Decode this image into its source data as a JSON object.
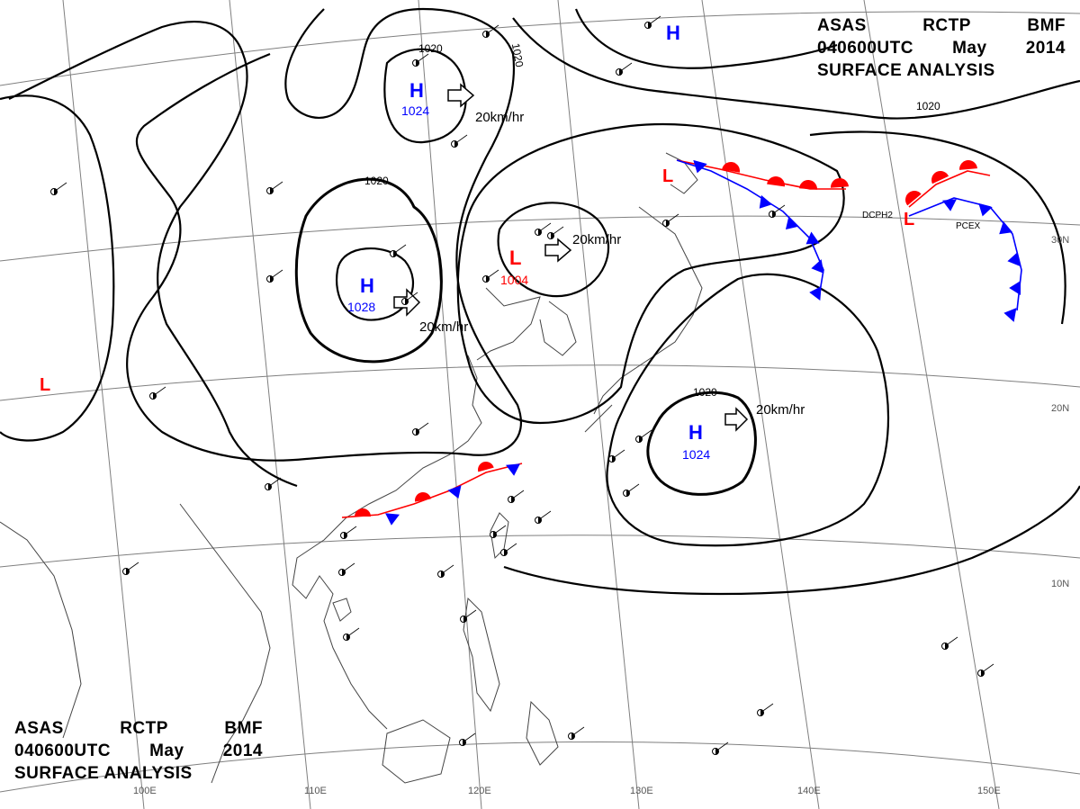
{
  "title": {
    "line1": [
      "ASAS",
      "RCTP",
      "BMF"
    ],
    "line2": [
      "040600UTC",
      "May",
      "2014"
    ],
    "line3": "SURFACE ANALYSIS"
  },
  "colors": {
    "high": "#0000ff",
    "low": "#ff0000",
    "cold_front": "#0000ff",
    "warm_front": "#ff0000",
    "grid": "#7f7f7f",
    "coast": "#444444"
  },
  "lat_labels": [
    "30N",
    "20N",
    "10N"
  ],
  "lon_labels": [
    "100E",
    "110E",
    "120E",
    "130E",
    "140E",
    "150E"
  ],
  "isobar_labels": [
    "1020",
    "1020",
    "1020",
    "1020",
    "1020"
  ],
  "pressure_centers": [
    {
      "type": "H",
      "value": "1024"
    },
    {
      "type": "H",
      "value": "1028"
    },
    {
      "type": "L",
      "value": "1004"
    },
    {
      "type": "H",
      "value": "1024"
    },
    {
      "type": "H",
      "value": ""
    },
    {
      "type": "L",
      "value": ""
    },
    {
      "type": "L",
      "value": ""
    },
    {
      "type": "L",
      "value": ""
    }
  ],
  "motion_labels": [
    "20km/hr",
    "20km/hr",
    "20km/hr",
    "20km/hr"
  ],
  "station_codes": [
    "DCPH2",
    "PCEX"
  ]
}
